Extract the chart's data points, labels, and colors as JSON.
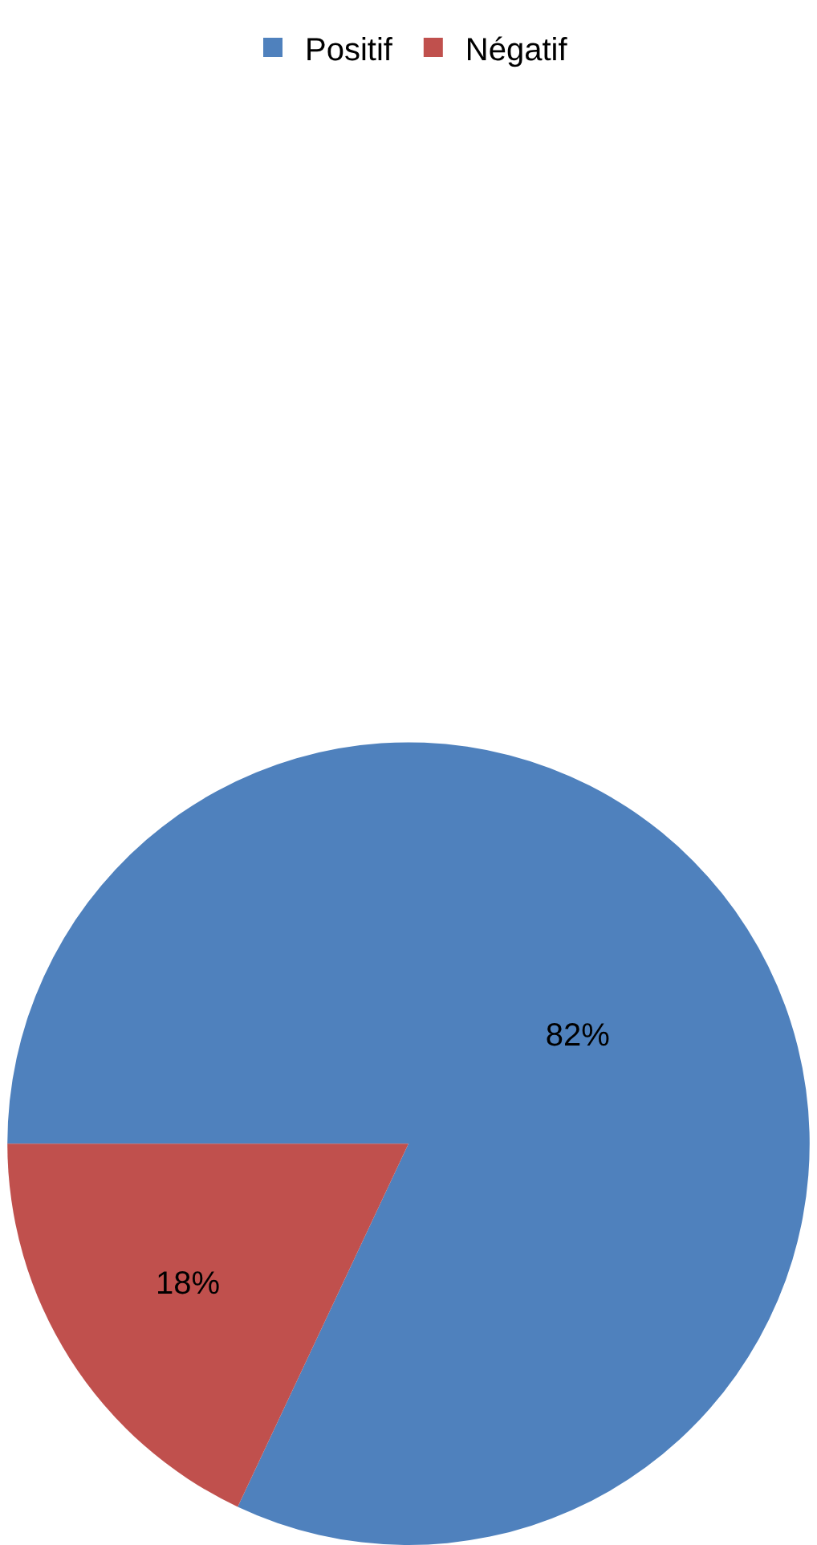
{
  "chart_data": {
    "type": "pie",
    "categories": [
      "Positif",
      "Négatif"
    ],
    "values": [
      82,
      18
    ],
    "colors": [
      "#4f81bd",
      "#c0504d"
    ],
    "value_labels": [
      "82%",
      "18%"
    ],
    "legend": "top"
  }
}
